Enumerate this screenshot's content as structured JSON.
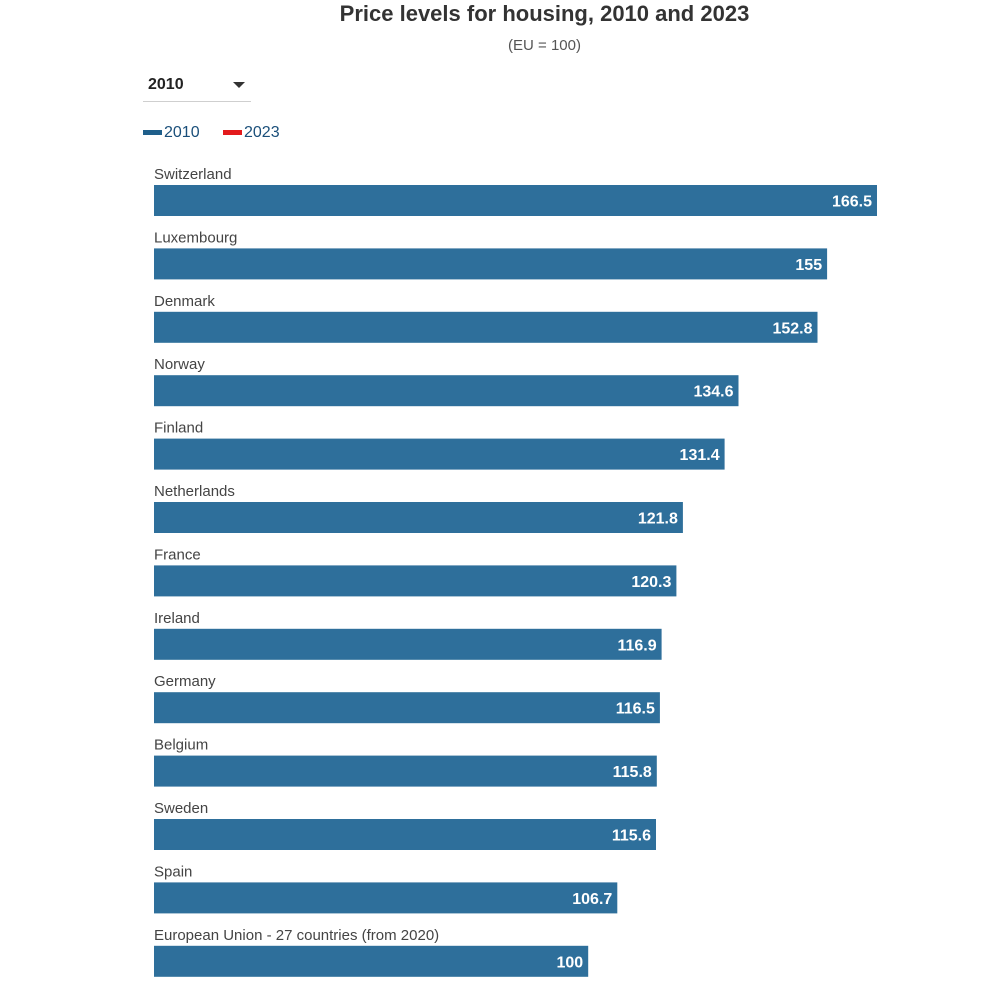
{
  "header": {
    "title": "Price levels for housing, 2010 and 2023",
    "subtitle": "(EU = 100)"
  },
  "year_selector": {
    "selected": "2010",
    "options": [
      "2010",
      "2023"
    ]
  },
  "legend": {
    "items": [
      {
        "label": "2010",
        "color": "#1f5f8b"
      },
      {
        "label": "2023",
        "color": "#e31a1c"
      }
    ]
  },
  "chart_data": {
    "type": "bar",
    "orientation": "horizontal",
    "categories": [
      "Switzerland",
      "Luxembourg",
      "Denmark",
      "Norway",
      "Finland",
      "Netherlands",
      "France",
      "Ireland",
      "Germany",
      "Belgium",
      "Sweden",
      "Spain",
      "European Union - 27 countries (from 2020)"
    ],
    "series": [
      {
        "name": "2010",
        "color": "#2e6f9b",
        "values": [
          166.5,
          155,
          152.8,
          134.6,
          131.4,
          121.8,
          120.3,
          116.9,
          116.5,
          115.8,
          115.6,
          106.7,
          100
        ]
      }
    ],
    "data_labels": [
      "166.5",
      "155",
      "152.8",
      "134.6",
      "131.4",
      "121.8",
      "120.3",
      "116.9",
      "116.5",
      "115.8",
      "115.6",
      "106.7",
      "100"
    ],
    "title": "Price levels for housing, 2010 and 2023",
    "subtitle": "(EU = 100)",
    "xlim": [
      0,
      166.5
    ],
    "grid": false,
    "legend_position": "top-left"
  }
}
